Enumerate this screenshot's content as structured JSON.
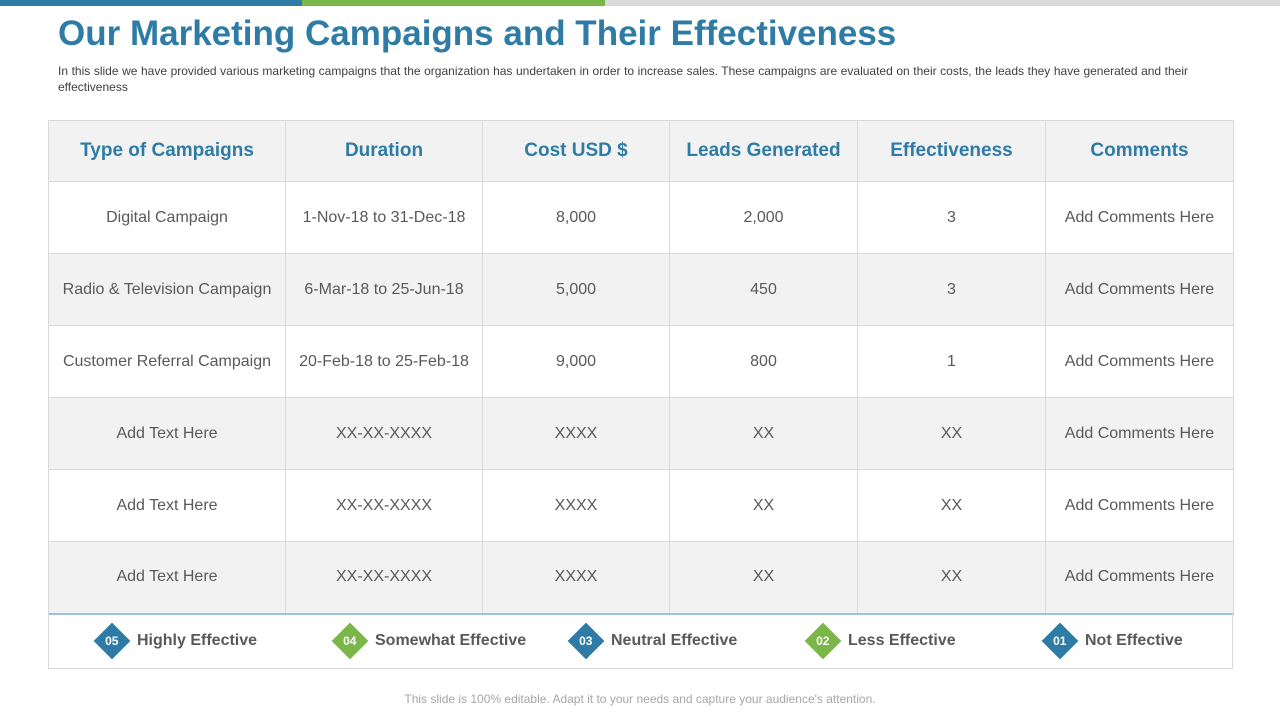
{
  "colors": {
    "primary": "#2e7ca6",
    "accent": "#7ab648",
    "light": "#d9d9d9"
  },
  "slide": {
    "title": "Our Marketing Campaigns and Their Effectiveness",
    "subtitle": "In this slide we have provided various marketing campaigns that the organization has undertaken in order to increase sales. These campaigns are evaluated on their costs, the leads they have generated and their effectiveness",
    "footer": "This slide is 100% editable. Adapt it to your needs and capture your audience's attention."
  },
  "table": {
    "headers": [
      "Type of Campaigns",
      "Duration",
      "Cost USD $",
      "Leads Generated",
      "Effectiveness",
      "Comments"
    ],
    "rows": [
      [
        "Digital Campaign",
        "1-Nov-18 to 31-Dec-18",
        "8,000",
        "2,000",
        "3",
        "Add Comments Here"
      ],
      [
        "Radio & Television Campaign",
        "6-Mar-18 to 25-Jun-18",
        "5,000",
        "450",
        "3",
        "Add Comments Here"
      ],
      [
        "Customer Referral Campaign",
        "20-Feb-18 to 25-Feb-18",
        "9,000",
        "800",
        "1",
        "Add Comments Here"
      ],
      [
        "Add Text Here",
        "XX-XX-XXXX",
        "XXXX",
        "XX",
        "XX",
        "Add Comments Here"
      ],
      [
        "Add Text Here",
        "XX-XX-XXXX",
        "XXXX",
        "XX",
        "XX",
        "Add Comments Here"
      ],
      [
        "Add Text Here",
        "XX-XX-XXXX",
        "XXXX",
        "XX",
        "XX",
        "Add Comments Here"
      ]
    ]
  },
  "legend": [
    {
      "number": "05",
      "label": "Highly Effective",
      "color": "#2e7ca6"
    },
    {
      "number": "04",
      "label": "Somewhat Effective",
      "color": "#7ab648"
    },
    {
      "number": "03",
      "label": "Neutral Effective",
      "color": "#2e7ca6"
    },
    {
      "number": "02",
      "label": "Less Effective",
      "color": "#7ab648"
    },
    {
      "number": "01",
      "label": "Not Effective",
      "color": "#2e7ca6"
    }
  ]
}
